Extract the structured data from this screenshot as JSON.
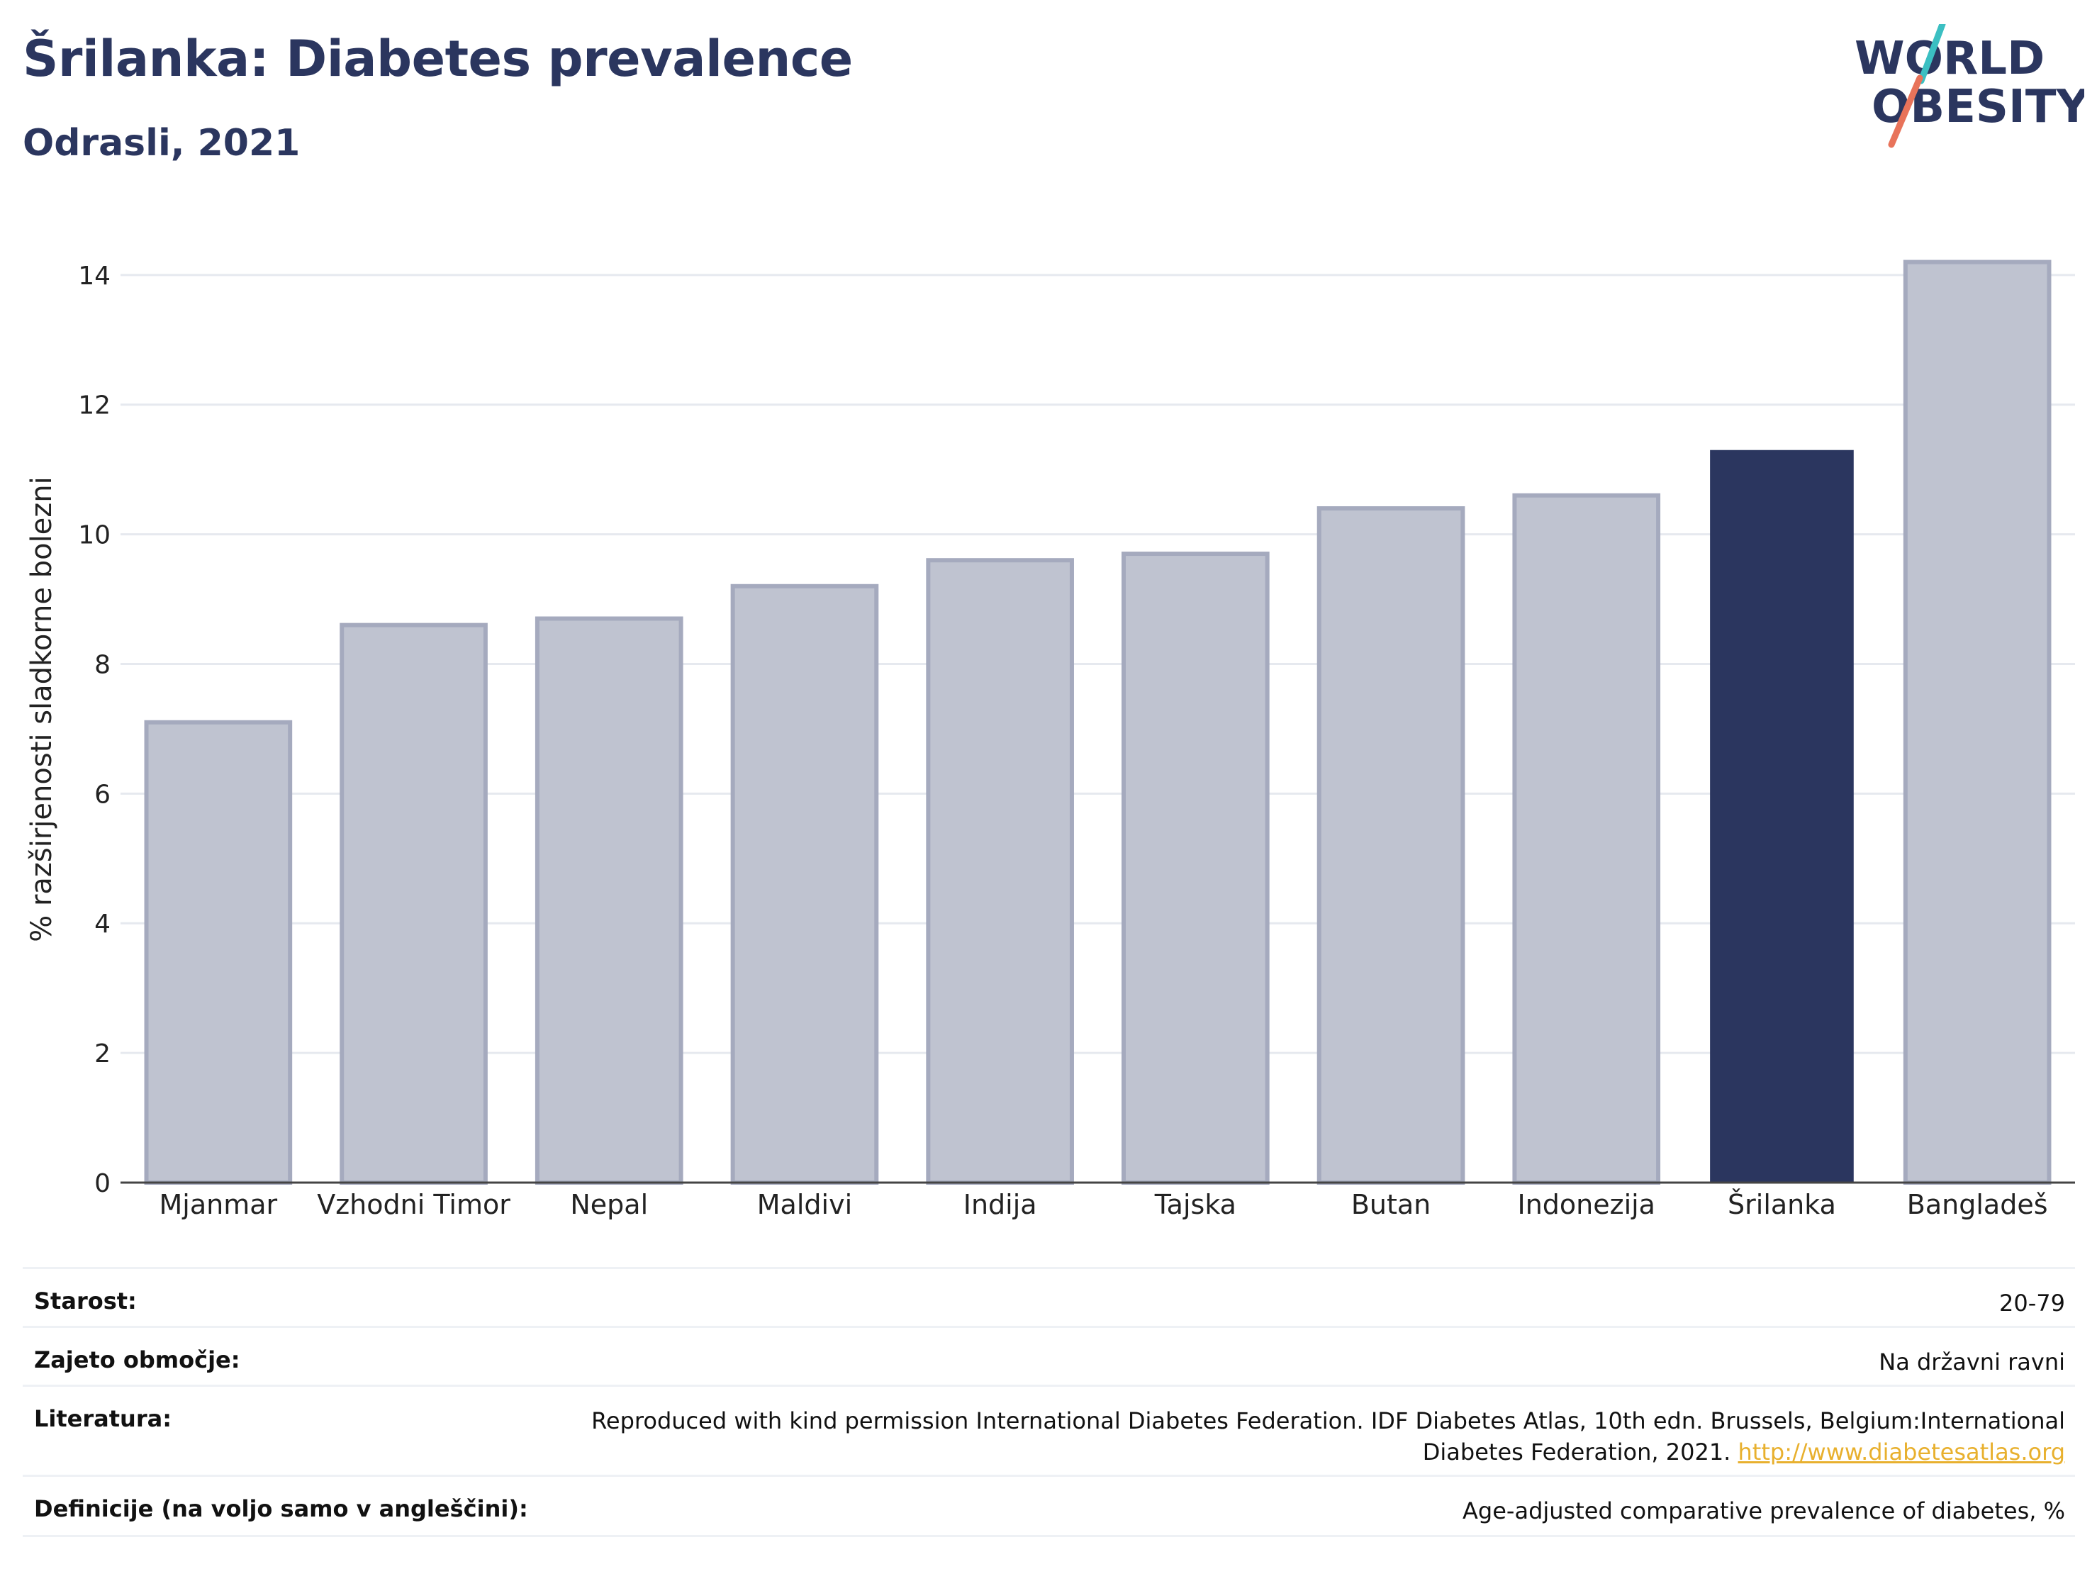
{
  "header": {
    "title": "Šrilanka: Diabetes prevalence",
    "subtitle": "Odrasli, 2021"
  },
  "logo": {
    "line1": "WORLD",
    "line2": "OBESITY",
    "colors": {
      "text": "#2b365f",
      "teal": "#3bbfc2",
      "coral": "#e8735a"
    }
  },
  "chart_data": {
    "type": "bar",
    "categories": [
      "Mjanmar",
      "Vzhodni Timor",
      "Nepal",
      "Maldivi",
      "Indija",
      "Tajska",
      "Butan",
      "Indonezija",
      "Šrilanka",
      "Bangladeš"
    ],
    "values": [
      7.1,
      8.6,
      8.7,
      9.2,
      9.6,
      9.7,
      10.4,
      10.6,
      11.3,
      14.2
    ],
    "highlight": "Šrilanka",
    "ylabel": "% razširjenosti sladkorne bolezni",
    "ylim": [
      0,
      14.6
    ],
    "yticks": [
      0,
      2,
      4,
      6,
      8,
      10,
      12,
      14
    ],
    "grid": true,
    "colors": {
      "bar": "#bfc3d0",
      "bar_edge": "#a5aabe",
      "highlight": "#2b365f",
      "grid": "#e6e9ef",
      "axis": "#444444"
    }
  },
  "info": {
    "rows": [
      {
        "label": "Starost:",
        "value": "20-79"
      },
      {
        "label": "Zajeto območje:",
        "value": "Na državni ravni"
      },
      {
        "label": "Literatura:",
        "value_line1": "Reproduced with kind permission International Diabetes Federation.  IDF Diabetes Atlas, 10th edn. Brussels, Belgium:International",
        "value_line2": "Diabetes Federation, 2021.",
        "link": "http://www.diabetesatlas.org"
      },
      {
        "label": "Definicije (na voljo samo v angleščini):",
        "value": "Age-adjusted comparative prevalence of diabetes, %"
      }
    ]
  }
}
